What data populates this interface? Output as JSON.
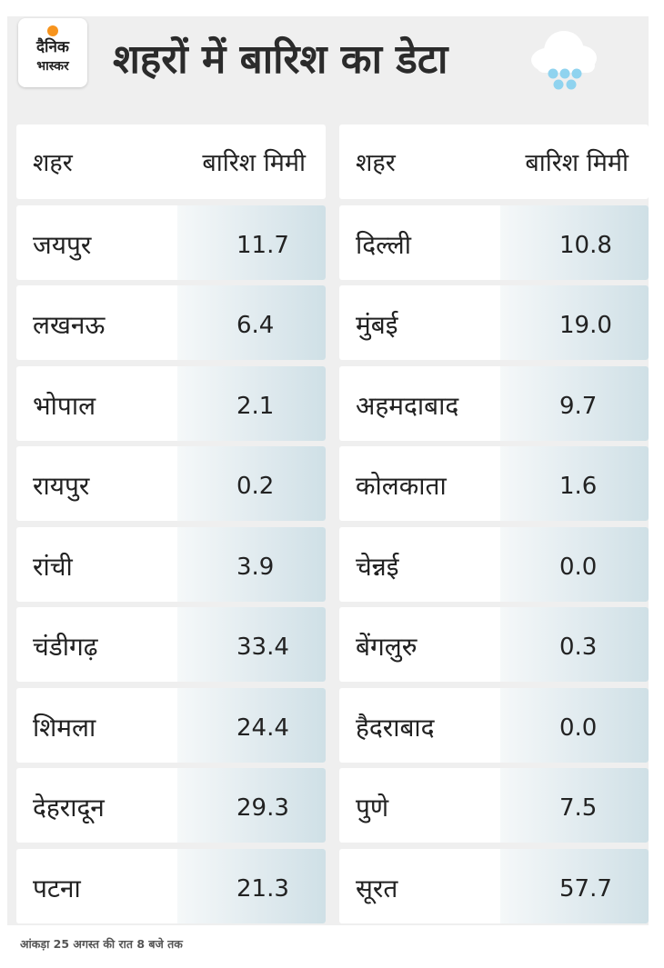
{
  "brand": {
    "line1": "दैनिक",
    "line2": "भास्कर"
  },
  "title": "शहरों में बारिश का डेटा",
  "columns": {
    "city": "शहर",
    "rain": "बारिश मिमी"
  },
  "left_rows": [
    {
      "city": "जयपुर",
      "value": "11.7"
    },
    {
      "city": "लखनऊ",
      "value": "6.4"
    },
    {
      "city": "भोपाल",
      "value": "2.1"
    },
    {
      "city": "रायपुर",
      "value": "0.2"
    },
    {
      "city": "रांची",
      "value": "3.9"
    },
    {
      "city": "चंडीगढ़",
      "value": "33.4"
    },
    {
      "city": "शिमला",
      "value": "24.4"
    },
    {
      "city": "देहरादून",
      "value": "29.3"
    },
    {
      "city": "पटना",
      "value": "21.3"
    }
  ],
  "right_rows": [
    {
      "city": "दिल्ली",
      "value": "10.8"
    },
    {
      "city": "मुंबई",
      "value": "19.0"
    },
    {
      "city": "अहमदाबाद",
      "value": "9.7"
    },
    {
      "city": "कोलकाता",
      "value": "1.6"
    },
    {
      "city": "चेन्नई",
      "value": "0.0"
    },
    {
      "city": "बेंगलुरु",
      "value": "0.3"
    },
    {
      "city": "हैदराबाद",
      "value": "0.0"
    },
    {
      "city": "पुणे",
      "value": "7.5"
    },
    {
      "city": "सूरत",
      "value": "57.7"
    }
  ],
  "footnote": "आंकड़ा 25 अगस्त की रात 8 बजे तक",
  "icons": {
    "logo": "dainik-bhaskar-logo",
    "weather": "rain-cloud-icon"
  },
  "colors": {
    "logo_dot": "#f7941d",
    "rain_drop": "#8fd3ef",
    "value_cell": "#d6e4ea"
  }
}
